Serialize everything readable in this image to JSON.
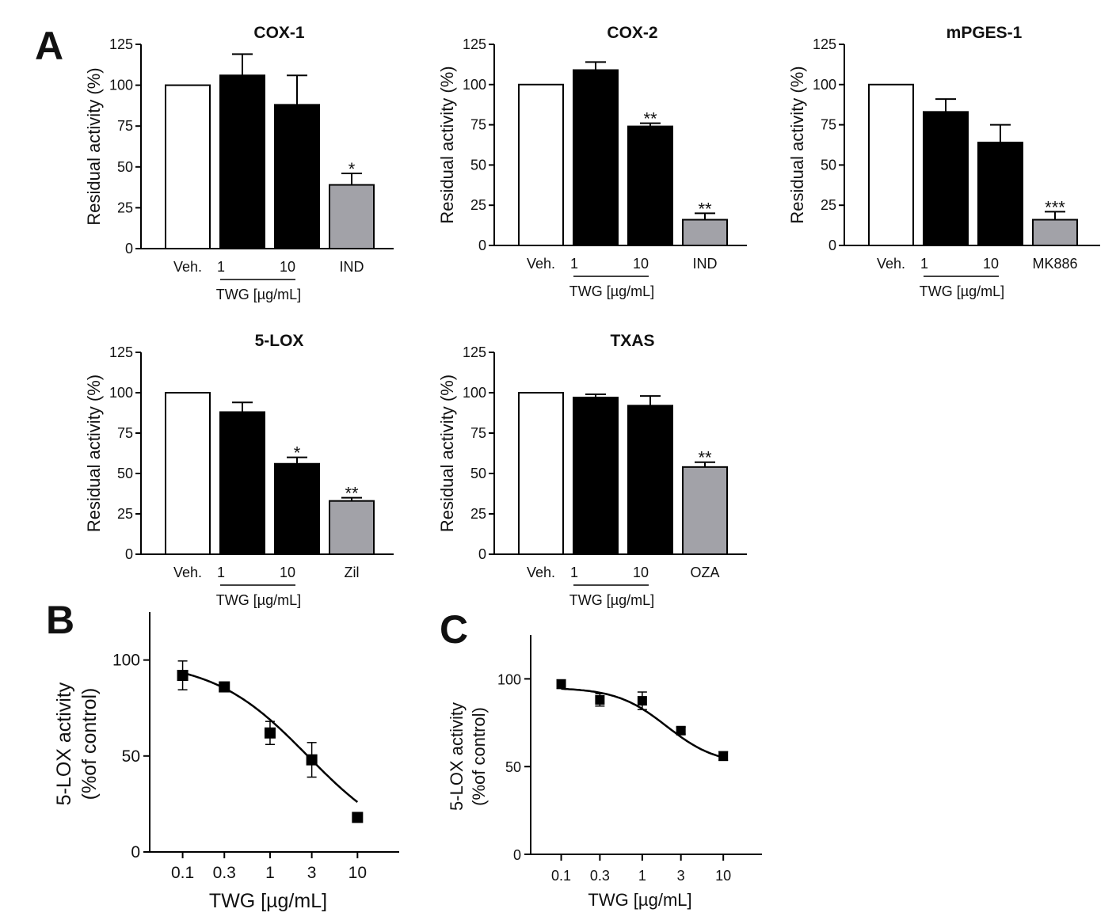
{
  "figure": {
    "panel_labels": [
      "A",
      "B",
      "C"
    ]
  },
  "colors": {
    "vehicle": "#ffffff",
    "twg": "#000000",
    "reference": "#a2a2a8",
    "axis": "#000000"
  },
  "chart_data": [
    {
      "id": "cox1",
      "type": "bar",
      "title": "COX-1",
      "ylabel": "Residual activity (%)",
      "ylim": [
        0,
        125
      ],
      "yticks": [
        0,
        25,
        50,
        75,
        100,
        125
      ],
      "categories": [
        "Veh.",
        "1",
        "10",
        "IND"
      ],
      "group_label": "TWG [µg/mL]",
      "values": [
        100,
        106,
        88,
        39
      ],
      "errors": [
        0,
        13,
        18,
        7
      ],
      "significance": [
        "",
        "",
        "",
        "*"
      ],
      "fills": [
        "vehicle",
        "twg",
        "twg",
        "reference"
      ]
    },
    {
      "id": "cox2",
      "type": "bar",
      "title": "COX-2",
      "ylabel": "Residual activity (%)",
      "ylim": [
        0,
        125
      ],
      "yticks": [
        0,
        25,
        50,
        75,
        100,
        125
      ],
      "categories": [
        "Veh.",
        "1",
        "10",
        "IND"
      ],
      "group_label": "TWG [µg/mL]",
      "values": [
        100,
        109,
        74,
        16
      ],
      "errors": [
        0,
        5,
        2,
        4
      ],
      "significance": [
        "",
        "",
        "**",
        "**"
      ],
      "fills": [
        "vehicle",
        "twg",
        "twg",
        "reference"
      ]
    },
    {
      "id": "mpges1",
      "type": "bar",
      "title": "mPGES-1",
      "ylabel": "Residual activity (%)",
      "ylim": [
        0,
        125
      ],
      "yticks": [
        0,
        25,
        50,
        75,
        100,
        125
      ],
      "categories": [
        "Veh.",
        "1",
        "10",
        "MK886"
      ],
      "group_label": "TWG [µg/mL]",
      "values": [
        100,
        83,
        64,
        16
      ],
      "errors": [
        0,
        8,
        11,
        5
      ],
      "significance": [
        "",
        "",
        "",
        "***"
      ],
      "fills": [
        "vehicle",
        "twg",
        "twg",
        "reference"
      ]
    },
    {
      "id": "lox5",
      "type": "bar",
      "title": "5-LOX",
      "ylabel": "Residual activity (%)",
      "ylim": [
        0,
        125
      ],
      "yticks": [
        0,
        25,
        50,
        75,
        100,
        125
      ],
      "categories": [
        "Veh.",
        "1",
        "10",
        "Zil"
      ],
      "group_label": "TWG [µg/mL]",
      "values": [
        100,
        88,
        56,
        33
      ],
      "errors": [
        0,
        6,
        4,
        2
      ],
      "significance": [
        "",
        "",
        "*",
        "**"
      ],
      "fills": [
        "vehicle",
        "twg",
        "twg",
        "reference"
      ]
    },
    {
      "id": "txas",
      "type": "bar",
      "title": "TXAS",
      "ylabel": "Residual activity (%)",
      "ylim": [
        0,
        125
      ],
      "yticks": [
        0,
        25,
        50,
        75,
        100,
        125
      ],
      "categories": [
        "Veh.",
        "1",
        "10",
        "OZA"
      ],
      "group_label": "TWG [µg/mL]",
      "values": [
        100,
        97,
        92,
        54
      ],
      "errors": [
        0,
        2,
        6,
        3
      ],
      "significance": [
        "",
        "",
        "",
        "**"
      ],
      "fills": [
        "vehicle",
        "twg",
        "twg",
        "reference"
      ]
    },
    {
      "id": "curveB",
      "type": "scatter",
      "panel": "B",
      "xlabel": "TWG [µg/mL]",
      "ylabel": [
        "5-LOX activity",
        "(%of control)"
      ],
      "xscale": "log",
      "xlim": [
        0.042,
        30
      ],
      "ylim": [
        0,
        125
      ],
      "yticks": [
        0,
        50,
        100
      ],
      "xticks": [
        0.1,
        0.3,
        1,
        3,
        10
      ],
      "xtick_labels": [
        "0.1",
        "0.3",
        "1",
        "3",
        "10"
      ],
      "x": [
        0.1,
        0.3,
        1,
        3,
        10
      ],
      "y": [
        92,
        86,
        62,
        48,
        18
      ],
      "errors": [
        7.5,
        0,
        6,
        9,
        0
      ],
      "fit": {
        "model": "four-parameter logistic",
        "top": 100,
        "bottom": 0,
        "ic50": 2.7,
        "hill": 0.8
      }
    },
    {
      "id": "curveC",
      "type": "scatter",
      "panel": "C",
      "xlabel": "TWG [µg/mL]",
      "ylabel": [
        "5-LOX activity",
        "(%of control)"
      ],
      "xscale": "log",
      "xlim": [
        0.042,
        30
      ],
      "ylim": [
        0,
        125
      ],
      "yticks": [
        0,
        50,
        100
      ],
      "xticks": [
        0.1,
        0.3,
        1,
        3,
        10
      ],
      "xtick_labels": [
        "0.1",
        "0.3",
        "1",
        "3",
        "10"
      ],
      "x": [
        0.1,
        0.3,
        1,
        3,
        10
      ],
      "y": [
        97,
        88,
        87.5,
        70.5,
        56
      ],
      "errors": [
        2.5,
        3.5,
        5,
        2,
        2.5
      ],
      "fit": {
        "model": "four-parameter logistic",
        "top": 95,
        "bottom": 51,
        "ic50": 2.0,
        "hill": 1.4
      }
    }
  ]
}
